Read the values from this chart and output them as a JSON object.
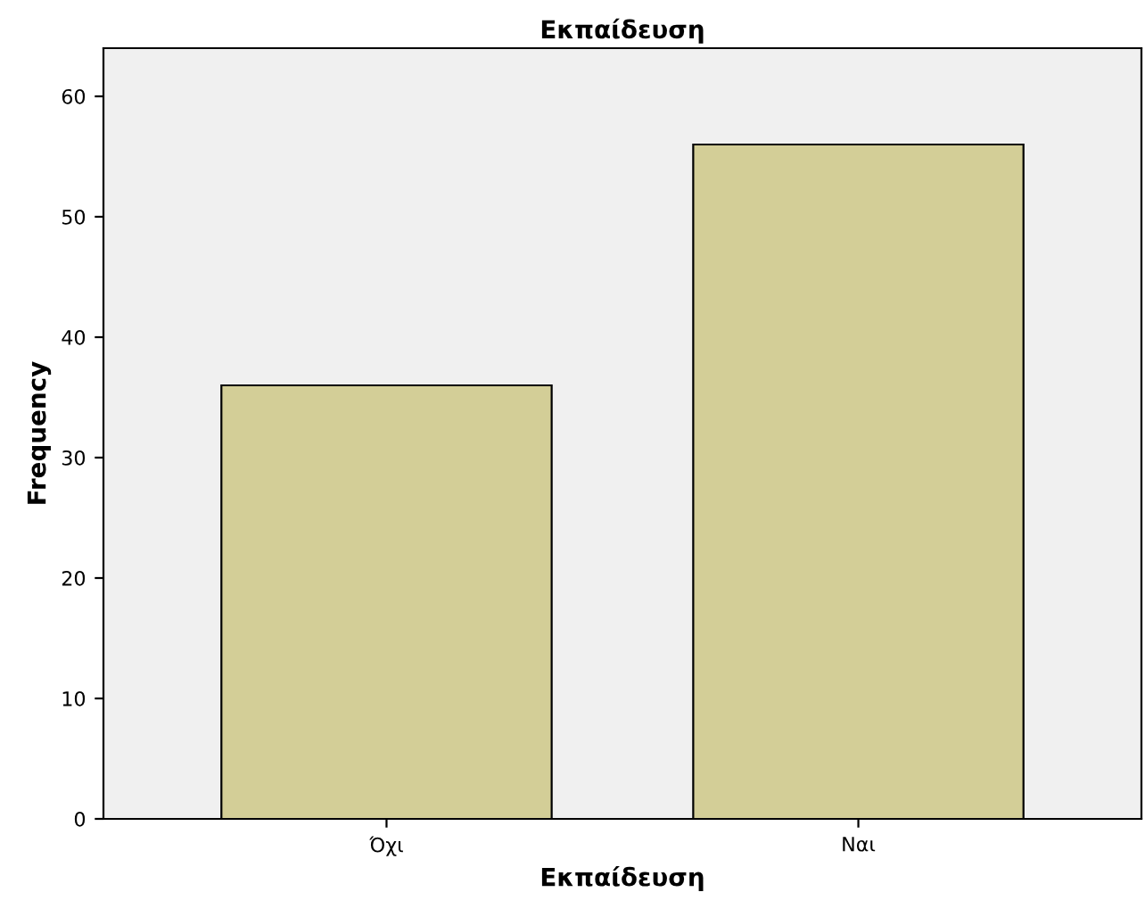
{
  "chart_data": {
    "type": "bar",
    "title": "Εκπαίδευση",
    "xlabel": "Εκπαίδευση",
    "ylabel": "Frequency",
    "categories": [
      "Όχι",
      "Ναι"
    ],
    "values": [
      36,
      56
    ],
    "color": "#d3ce97",
    "ylim": [
      0,
      64
    ],
    "yticks": [
      0,
      10,
      20,
      30,
      40,
      50,
      60
    ],
    "grid": false
  }
}
